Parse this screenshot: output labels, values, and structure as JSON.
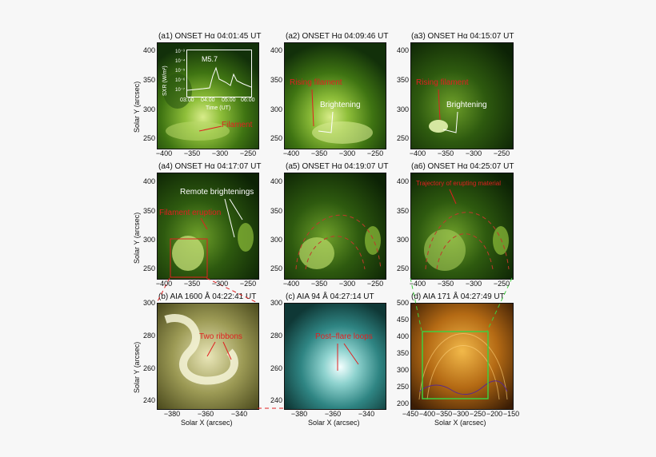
{
  "colors": {
    "halpha_dark": "#0d2a06",
    "halpha_mid": "#4f8a17",
    "halpha_bright": "#d8ec8a",
    "aia1600": "#6b6a2e",
    "aia94": "#2f8583",
    "aia171": "#9a5d12",
    "red_annotation": "#e02020",
    "white_annotation": "#ffffff",
    "green_box": "#3fcf3f"
  },
  "panels": {
    "a1": {
      "title": "(a1)  ONSET Hα 04:01:45 UT",
      "annotation": "Filament"
    },
    "a2": {
      "title": "(a2)  ONSET Hα 04:09:46 UT",
      "annotation_red": "Rising filament",
      "annotation_white": "Brightening"
    },
    "a3": {
      "title": "(a3)  ONSET Hα 04:15:07 UT",
      "annotation_red": "Rising filament",
      "annotation_white": "Brightening"
    },
    "a4": {
      "title": "(a4)  ONSET Hα 04:17:07 UT",
      "annotation_red": "Filament eruption",
      "annotation_white": "Remote brightenings"
    },
    "a5": {
      "title": "(a5)  ONSET Hα 04:19:07 UT"
    },
    "a6": {
      "title": "(a6)  ONSET Hα 04:25:07 UT",
      "annotation_red": "Trajectory of erupting material"
    },
    "b": {
      "title": "(b)  AIA 1600 Å 04:22:41 UT",
      "annotation_red": "Two ribbons"
    },
    "c": {
      "title": "(c)  AIA 94 Å 04:27:14 UT",
      "annotation_red": "Post–flare loops"
    },
    "d": {
      "title": "(d)  AIA 171 Å 04:27:49 UT"
    }
  },
  "axes": {
    "top_y_label": "Solar Y (arcsec)",
    "bottom_x_label": "Solar X (arcsec)",
    "top_yticks": [
      "400",
      "350",
      "300",
      "250"
    ],
    "top_xticks": [
      "−400",
      "−350",
      "−300",
      "−250"
    ],
    "bc_yticks": [
      "300",
      "280",
      "260",
      "240"
    ],
    "bc_xticks": [
      "−380",
      "−360",
      "−340"
    ],
    "d_yticks": [
      "500",
      "450",
      "400",
      "350",
      "300",
      "250",
      "200"
    ],
    "d_xticks": [
      "−450",
      "−400",
      "−350",
      "−300",
      "−250",
      "−200",
      "−150"
    ]
  },
  "inset": {
    "ylabel": "SXR (W/m²)",
    "yticks": [
      "10⁻³",
      "10⁻⁴",
      "10⁻⁵",
      "10⁻⁶",
      "10⁻⁷"
    ],
    "xticks": [
      "03:00",
      "04:00",
      "05:00",
      "06:00"
    ],
    "xlabel": "Time (UT)",
    "flare_class": "M5.7"
  }
}
